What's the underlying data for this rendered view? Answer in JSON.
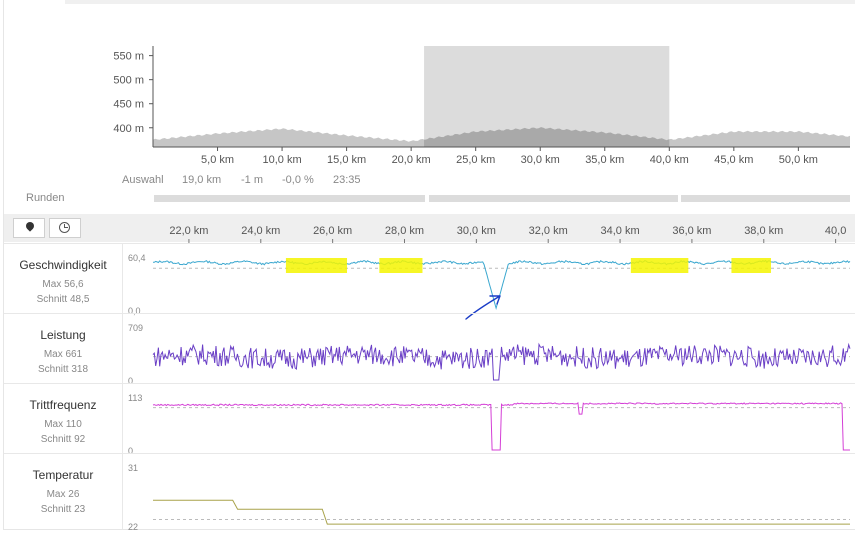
{
  "overview": {
    "y_ticks": [
      "550 m",
      "500 m",
      "450 m",
      "400 m"
    ],
    "x_ticks": [
      "5,0 km",
      "10,0 km",
      "15,0 km",
      "20,0 km",
      "25,0 km",
      "30,0 km",
      "35,0 km",
      "40,0 km",
      "45,0 km",
      "50,0 km"
    ],
    "selection_km": [
      21.0,
      40.0
    ]
  },
  "summary": {
    "label": "Auswahl",
    "distance": "19,0 km",
    "elevation": "-1 m",
    "grade": "-0,0 %",
    "time": "23:35"
  },
  "runden_label": "Runden",
  "toolbar": {
    "map_icon": "map-pin-icon",
    "time_icon": "clock-icon"
  },
  "detail_x_ticks": [
    "22,0 km",
    "24,0 km",
    "26,0 km",
    "28,0 km",
    "30,0 km",
    "32,0 km",
    "34,0 km",
    "36,0 km",
    "38,0 km",
    "40,0"
  ],
  "rows": [
    {
      "title": "Geschwindigkeit",
      "max": "Max 56,6",
      "avg": "Schnitt 48,5",
      "ymax": "60,4",
      "ymin": "0,0",
      "color": "#3aa7cf"
    },
    {
      "title": "Leistung",
      "max": "Max 661",
      "avg": "Schnitt 318",
      "ymax": "709",
      "ymin": "0",
      "color": "#6a3fc6"
    },
    {
      "title": "Trittfrequenz",
      "max": "Max 110",
      "avg": "Schnitt 92",
      "ymax": "113",
      "ymin": "0",
      "color": "#d43fd6"
    },
    {
      "title": "Temperatur",
      "max": "Max 26",
      "avg": "Schnitt 23",
      "ymax": "31",
      "ymin": "22",
      "color": "#a8a24a"
    }
  ],
  "chart_data": [
    {
      "type": "area",
      "xlabel": "",
      "ylabel": "",
      "x": [
        0,
        5,
        10,
        15,
        20,
        25,
        30,
        35,
        40,
        45,
        50,
        54
      ],
      "values": [
        375,
        388,
        398,
        384,
        372,
        392,
        400,
        390,
        375,
        392,
        392,
        382
      ],
      "ylim": [
        360,
        570
      ],
      "xlim": [
        0,
        54
      ]
    },
    {
      "type": "line",
      "series": [
        {
          "name": "Geschwindigkeit",
          "ylim": [
            0,
            60.4
          ],
          "avg": 48.5
        },
        {
          "name": "Leistung",
          "ylim": [
            0,
            709
          ],
          "avg": 318
        },
        {
          "name": "Trittfrequenz",
          "ylim": [
            0,
            113
          ],
          "avg": 92
        },
        {
          "name": "Temperatur",
          "ylim": [
            22,
            31
          ],
          "avg": 23
        }
      ],
      "xlim": [
        21.0,
        40.4
      ]
    }
  ]
}
